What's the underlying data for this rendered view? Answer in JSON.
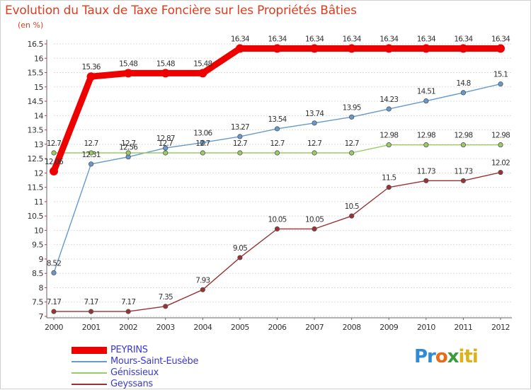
{
  "chart_data": {
    "type": "line",
    "title": "Evolution du Taux de Taxe Foncière sur les Propriétés Bâties",
    "ylabel": "(en %)",
    "xlabel": "",
    "ylim": [
      7,
      16.5
    ],
    "yticks": [
      "7",
      "7.5",
      "8",
      "8.5",
      "9",
      "9.5",
      "10",
      "10.5",
      "11",
      "11.5",
      "12",
      "12.5",
      "13",
      "13.5",
      "14",
      "14.5",
      "15",
      "15.5",
      "16",
      "16.5"
    ],
    "categories": [
      "2000",
      "2001",
      "2002",
      "2003",
      "2004",
      "2005",
      "2006",
      "2007",
      "2008",
      "2009",
      "2010",
      "2011",
      "2012"
    ],
    "series": [
      {
        "name": "PEYRINS",
        "color": "#ee0000",
        "values": [
          12.06,
          15.36,
          15.48,
          15.48,
          15.48,
          16.34,
          16.34,
          16.34,
          16.34,
          16.34,
          16.34,
          16.34,
          16.34
        ],
        "labels": [
          "12.06",
          "15.36",
          "15.48",
          "15.48",
          "15.48",
          "16.34",
          "16.34",
          "16.34",
          "16.34",
          "16.34",
          "16.34",
          "16.34",
          "16.34"
        ]
      },
      {
        "name": "Mours-Saint-Eusèbe",
        "color": "#6699cc",
        "values": [
          8.52,
          12.31,
          12.56,
          12.87,
          13.06,
          13.27,
          13.54,
          13.74,
          13.95,
          14.23,
          14.51,
          14.8,
          15.1
        ],
        "labels": [
          "8.52",
          "12.31",
          "12.56",
          "12.87",
          "13.06",
          "13.27",
          "13.54",
          "13.74",
          "13.95",
          "14.23",
          "14.51",
          "14.8",
          "15.1"
        ]
      },
      {
        "name": "Génissieux",
        "color": "#99cc66",
        "values": [
          12.7,
          12.7,
          12.7,
          12.7,
          12.7,
          12.7,
          12.7,
          12.7,
          12.7,
          12.98,
          12.98,
          12.98,
          12.98
        ],
        "labels": [
          "12.7",
          "12.7",
          "12.7",
          "12.7",
          "12.7",
          "12.7",
          "12.7",
          "12.7",
          "12.7",
          "12.98",
          "12.98",
          "12.98",
          "12.98"
        ]
      },
      {
        "name": "Geyssans",
        "color": "#993333",
        "values": [
          7.17,
          7.17,
          7.17,
          7.35,
          7.93,
          9.05,
          10.05,
          10.05,
          10.5,
          11.5,
          11.73,
          11.73,
          12.02
        ],
        "labels": [
          "7.17",
          "7.17",
          "7.17",
          "7.35",
          "7.93",
          "9.05",
          "10.05",
          "10.05",
          "10.5",
          "11.5",
          "11.73",
          "11.73",
          "12.02"
        ]
      }
    ],
    "legend_position": "bottom-left"
  },
  "brand": {
    "logo_parts": [
      "Pr",
      "o",
      "x",
      "iti"
    ]
  }
}
